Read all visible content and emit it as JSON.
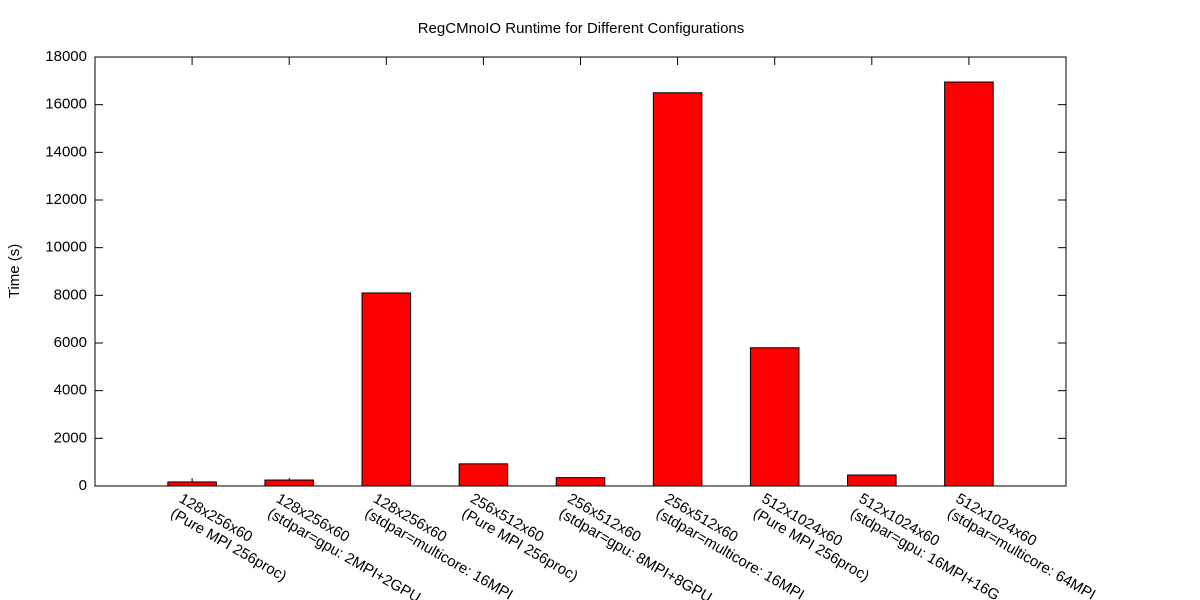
{
  "chart_data": {
    "type": "bar",
    "title": "RegCMnoIO Runtime for Different Configurations",
    "y_label": "Time (s)",
    "categories": [
      [
        "128x256x60",
        "(Pure MPI 256proc)"
      ],
      [
        "128x256x60",
        "(stdpar=gpu: 2MPI+2GPU"
      ],
      [
        "128x256x60",
        "(stdpar=multicore: 16MPI"
      ],
      [
        "256x512x60",
        "(Pure MPI 256proc)"
      ],
      [
        "256x512x60",
        "(stdpar=gpu: 8MPI+8GPU"
      ],
      [
        "256x512x60",
        "(stdpar=multicore: 16MPI"
      ],
      [
        "512x1024x60",
        "(Pure MPI 256proc)"
      ],
      [
        "512x1024x60",
        "(stdpar=gpu: 16MPI+16G"
      ],
      [
        "512x1024x60",
        "(stdpar=multicore: 64MPI"
      ]
    ],
    "values": [
      170,
      250,
      8100,
      930,
      350,
      16500,
      5800,
      460,
      16950
    ],
    "color": "#ff0000",
    "ylim": [
      0,
      18000
    ],
    "yticks": [
      0,
      2000,
      4000,
      6000,
      8000,
      10000,
      12000,
      14000,
      16000,
      18000
    ]
  }
}
